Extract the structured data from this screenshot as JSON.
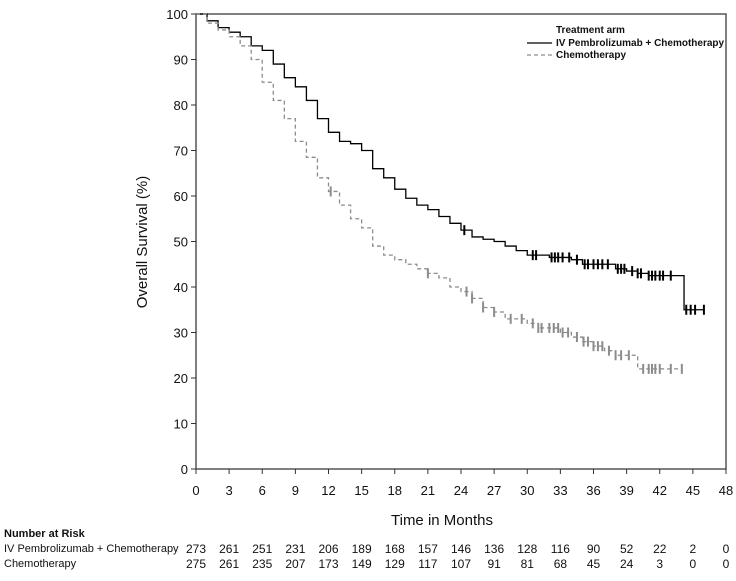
{
  "chart_data": {
    "type": "line",
    "subtype": "kaplan-meier",
    "xlabel": "Time in Months",
    "ylabel": "Overall Survival (%)",
    "xlim": [
      0,
      48
    ],
    "ylim": [
      0,
      100
    ],
    "xticks": [
      0,
      3,
      6,
      9,
      12,
      15,
      18,
      21,
      24,
      27,
      30,
      33,
      36,
      39,
      42,
      45,
      48
    ],
    "yticks": [
      0,
      10,
      20,
      30,
      40,
      50,
      60,
      70,
      80,
      90,
      100
    ],
    "grid": false,
    "legend": {
      "title": "Treatment arm",
      "placement": "top-right"
    },
    "series": [
      {
        "name": "IV Pembrolizumab + Chemotherapy",
        "color": "#000000",
        "style": "solid",
        "points": [
          [
            0,
            100
          ],
          [
            1,
            98.5
          ],
          [
            2,
            97
          ],
          [
            3,
            96
          ],
          [
            4,
            95
          ],
          [
            5,
            93
          ],
          [
            6,
            92
          ],
          [
            7,
            89
          ],
          [
            8,
            86
          ],
          [
            9,
            84
          ],
          [
            10,
            81
          ],
          [
            11,
            77
          ],
          [
            12,
            74
          ],
          [
            13,
            72
          ],
          [
            14,
            71.5
          ],
          [
            15,
            70
          ],
          [
            16,
            66
          ],
          [
            17,
            64
          ],
          [
            18,
            61.5
          ],
          [
            19,
            59.5
          ],
          [
            20,
            58
          ],
          [
            21,
            57
          ],
          [
            22,
            55.5
          ],
          [
            23,
            54
          ],
          [
            24,
            52.5
          ],
          [
            25,
            51
          ],
          [
            26,
            50.5
          ],
          [
            27,
            50
          ],
          [
            28,
            49
          ],
          [
            29,
            48
          ],
          [
            30,
            47
          ],
          [
            32,
            46.5
          ],
          [
            34,
            46
          ],
          [
            35,
            45
          ],
          [
            38,
            44
          ],
          [
            39,
            43.5
          ],
          [
            40,
            43
          ],
          [
            41,
            42.5
          ],
          [
            44.2,
            35
          ],
          [
            46,
            35
          ]
        ],
        "censored": [
          24.3,
          30.5,
          30.8,
          32.2,
          32.5,
          32.8,
          33.2,
          33.8,
          34.5,
          35.2,
          35.5,
          36,
          36.4,
          36.8,
          37.3,
          38.2,
          38.5,
          38.8,
          39.5,
          40,
          40.3,
          41,
          41.3,
          41.6,
          42,
          42.3,
          43,
          44.4,
          44.8,
          45.2,
          46
        ]
      },
      {
        "name": "Chemotherapy",
        "color": "#8c8c8c",
        "style": "dashed",
        "points": [
          [
            0,
            100
          ],
          [
            1,
            98
          ],
          [
            2,
            96.5
          ],
          [
            3,
            95
          ],
          [
            4,
            93
          ],
          [
            5,
            90
          ],
          [
            6,
            85
          ],
          [
            7,
            81
          ],
          [
            8,
            77
          ],
          [
            9,
            72
          ],
          [
            10,
            68.5
          ],
          [
            11,
            64
          ],
          [
            12,
            61
          ],
          [
            13,
            58
          ],
          [
            14,
            55
          ],
          [
            15,
            53
          ],
          [
            16,
            49
          ],
          [
            17,
            47
          ],
          [
            18,
            46
          ],
          [
            19,
            45
          ],
          [
            20,
            44
          ],
          [
            21,
            43
          ],
          [
            22,
            42
          ],
          [
            23,
            40
          ],
          [
            24,
            39
          ],
          [
            25,
            37.5
          ],
          [
            26,
            35.5
          ],
          [
            27,
            34.5
          ],
          [
            28,
            33
          ],
          [
            30,
            32
          ],
          [
            31,
            31
          ],
          [
            33,
            30
          ],
          [
            34,
            29
          ],
          [
            35,
            28
          ],
          [
            36,
            27
          ],
          [
            37,
            26
          ],
          [
            38,
            25
          ],
          [
            39.5,
            25
          ],
          [
            40,
            22
          ],
          [
            44,
            22
          ]
        ],
        "censored": [
          12.2,
          21,
          24.5,
          25,
          26,
          27,
          28.5,
          29.5,
          30.5,
          31,
          31.3,
          32,
          32.4,
          32.8,
          33.2,
          33.7,
          34.5,
          35.1,
          35.5,
          36,
          36.4,
          36.8,
          37.4,
          38,
          38.5,
          39.2,
          40.5,
          41,
          41.3,
          41.6,
          42,
          43,
          44
        ]
      }
    ]
  },
  "risk_table": {
    "title": "Number at Risk",
    "rows": [
      {
        "label": "IV Pembrolizumab + Chemotherapy",
        "values": [
          273,
          261,
          251,
          231,
          206,
          189,
          168,
          157,
          146,
          136,
          128,
          116,
          90,
          52,
          22,
          2,
          0
        ]
      },
      {
        "label": "Chemotherapy",
        "values": [
          275,
          261,
          235,
          207,
          173,
          149,
          129,
          117,
          107,
          91,
          81,
          68,
          45,
          24,
          3,
          0,
          0
        ]
      }
    ]
  }
}
